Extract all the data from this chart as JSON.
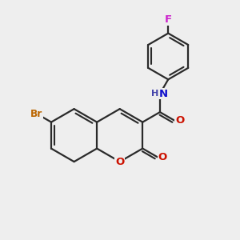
{
  "bg_color": "#eeeeee",
  "bond_color": "#2a2a2a",
  "bond_width": 1.6,
  "atom_colors": {
    "Br": "#bb6600",
    "O": "#cc1100",
    "N": "#1111cc",
    "F": "#cc22cc",
    "H": "#4444aa"
  },
  "font_size": 9.5,
  "fig_bg": "#eeeeee"
}
